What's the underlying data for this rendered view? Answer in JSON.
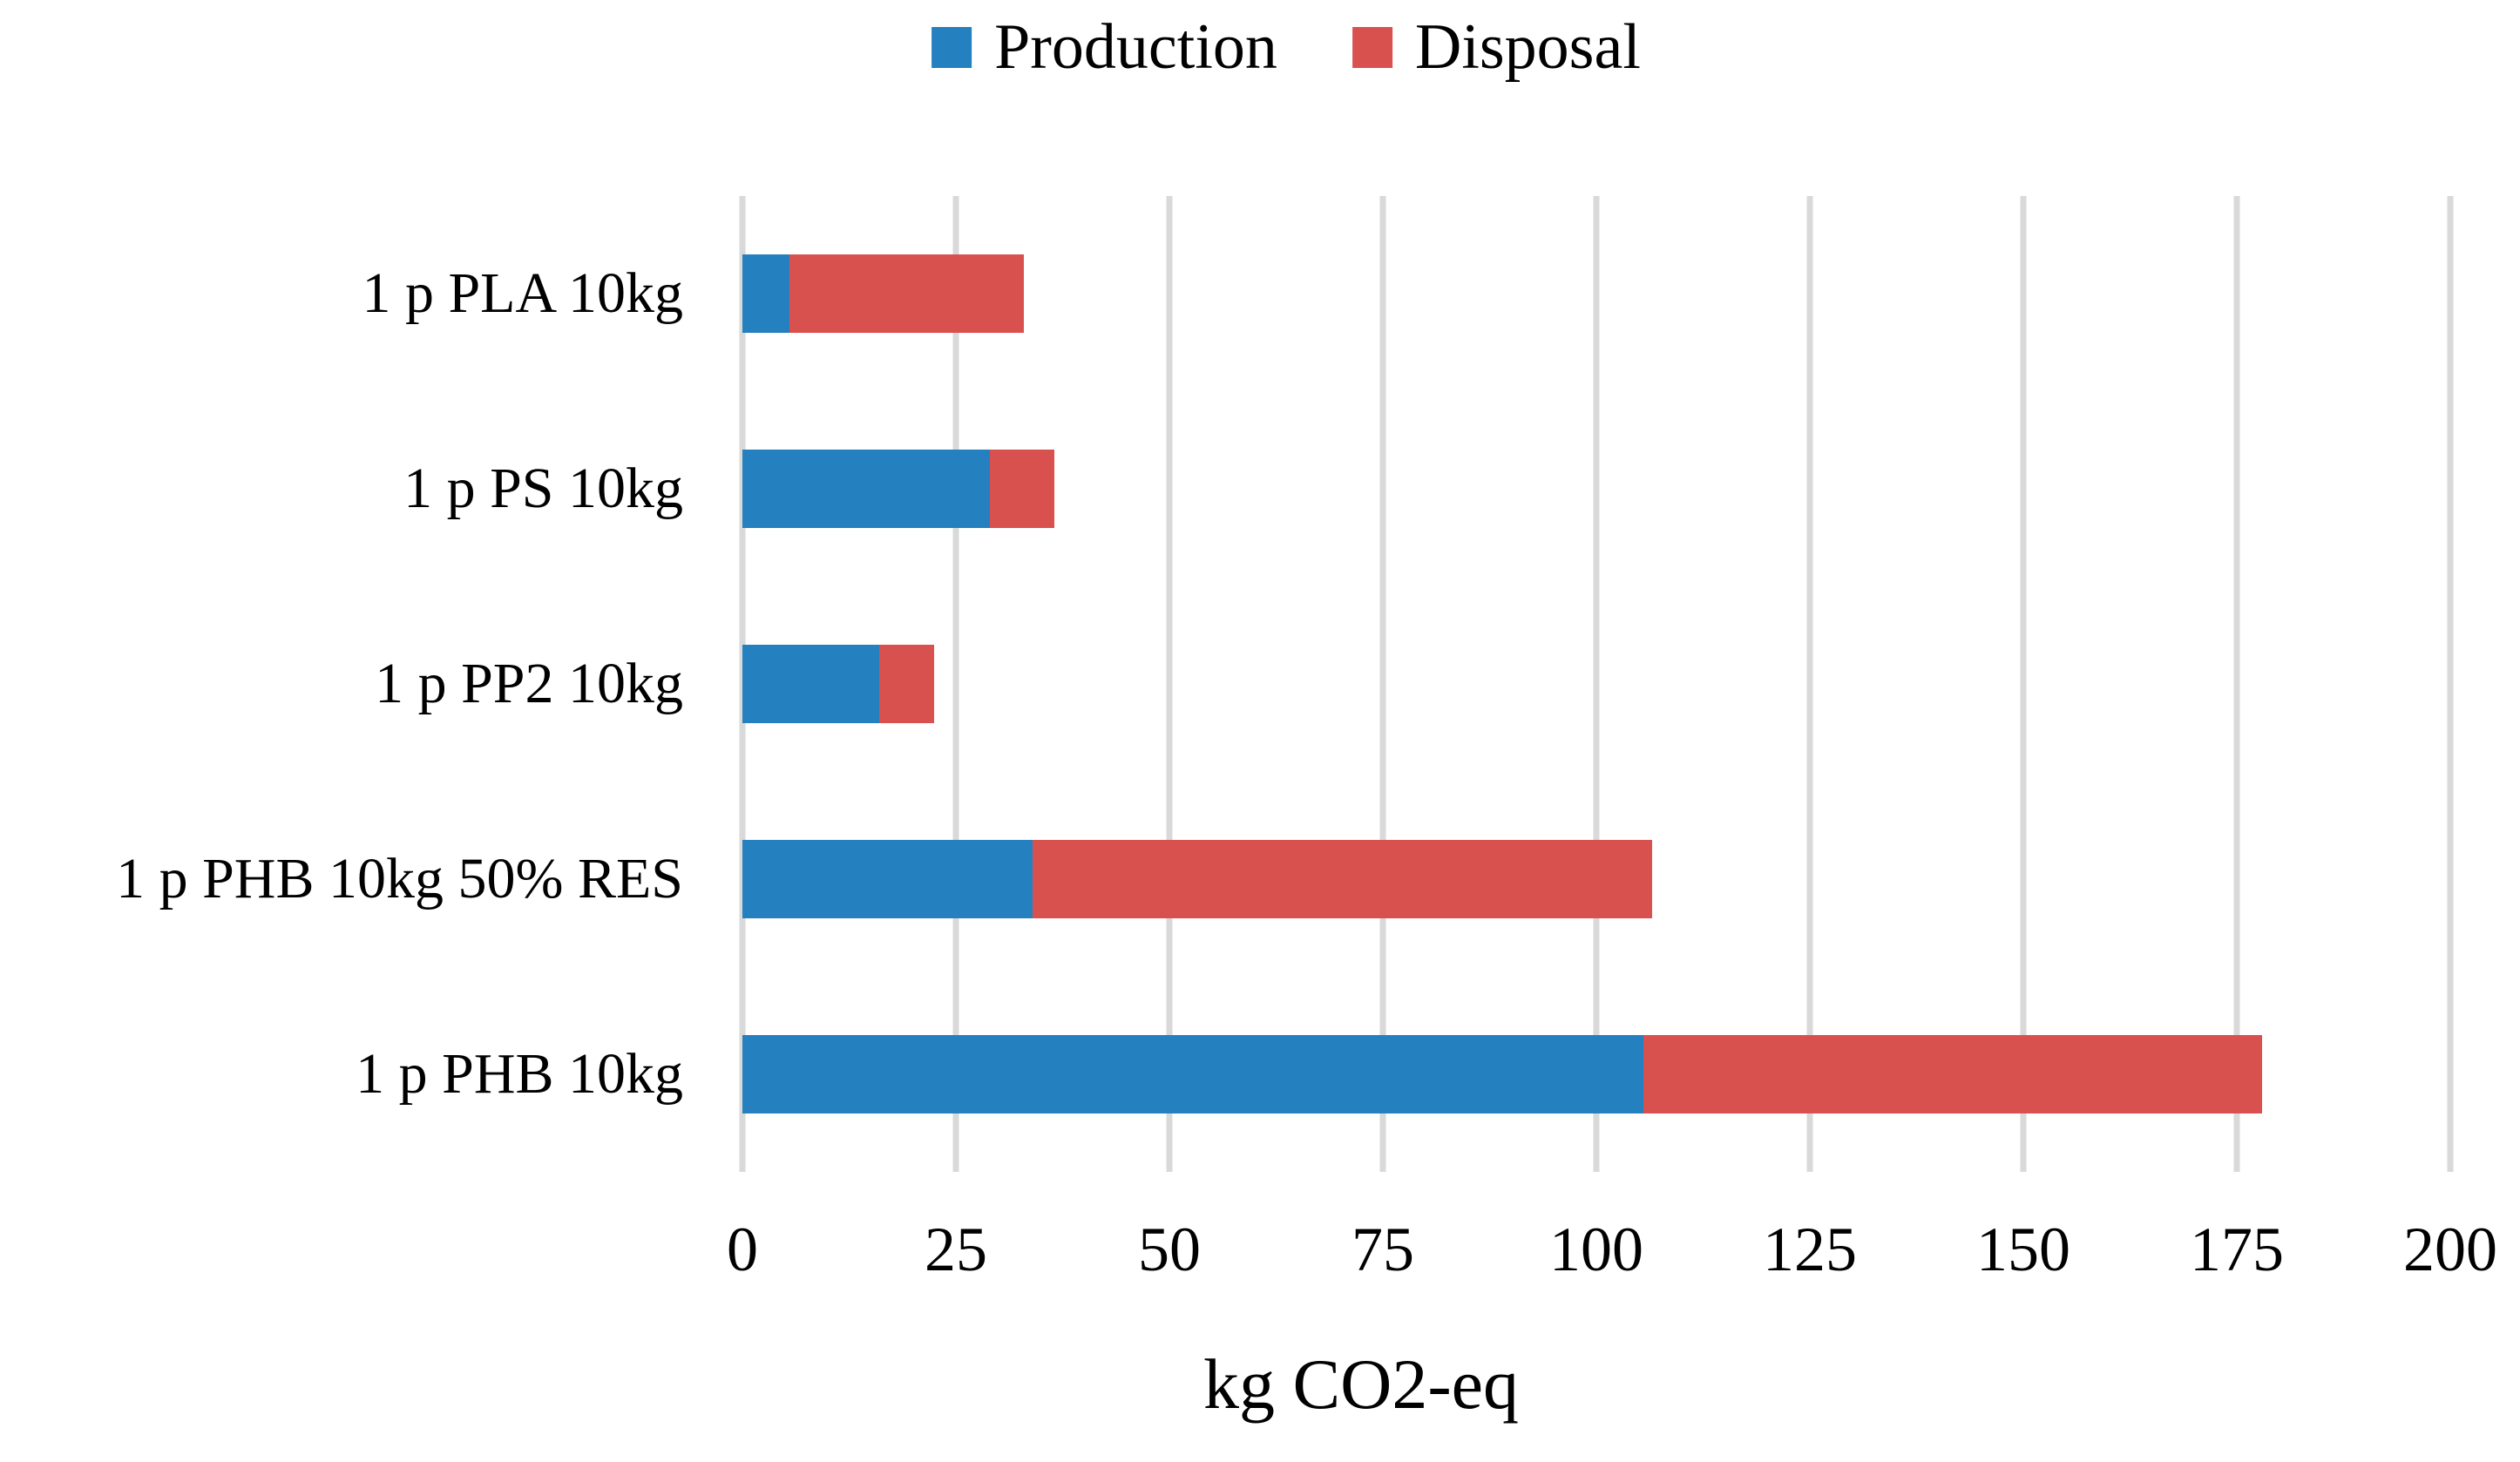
{
  "chart_data": {
    "type": "bar",
    "orientation": "horizontal",
    "stacked": true,
    "title": "",
    "xlabel": "kg CO2-eq",
    "categories": [
      "1 p PLA 10kg",
      "1 p PS 10kg",
      "1 p PP2 10kg",
      "1 p PHB 10kg 50% RES",
      "1 p PHB 10kg"
    ],
    "series": [
      {
        "name": "Production",
        "color": "#2480be",
        "values": [
          5.5,
          29,
          16,
          34,
          105.5
        ]
      },
      {
        "name": "Disposal",
        "color": "#d9514f",
        "values": [
          27.5,
          7.5,
          6.5,
          72.5,
          72.5
        ]
      }
    ],
    "totals": [
      33,
      36.5,
      22.5,
      106.5,
      178
    ],
    "xlim": [
      0,
      200
    ],
    "xticks": [
      0,
      25,
      50,
      75,
      100,
      125,
      150,
      175,
      200
    ],
    "grid": "vertical",
    "gridline_color": "#d9d9d9",
    "legend_position": "top-center",
    "text_color": "#000000",
    "background_color": "#ffffff"
  }
}
